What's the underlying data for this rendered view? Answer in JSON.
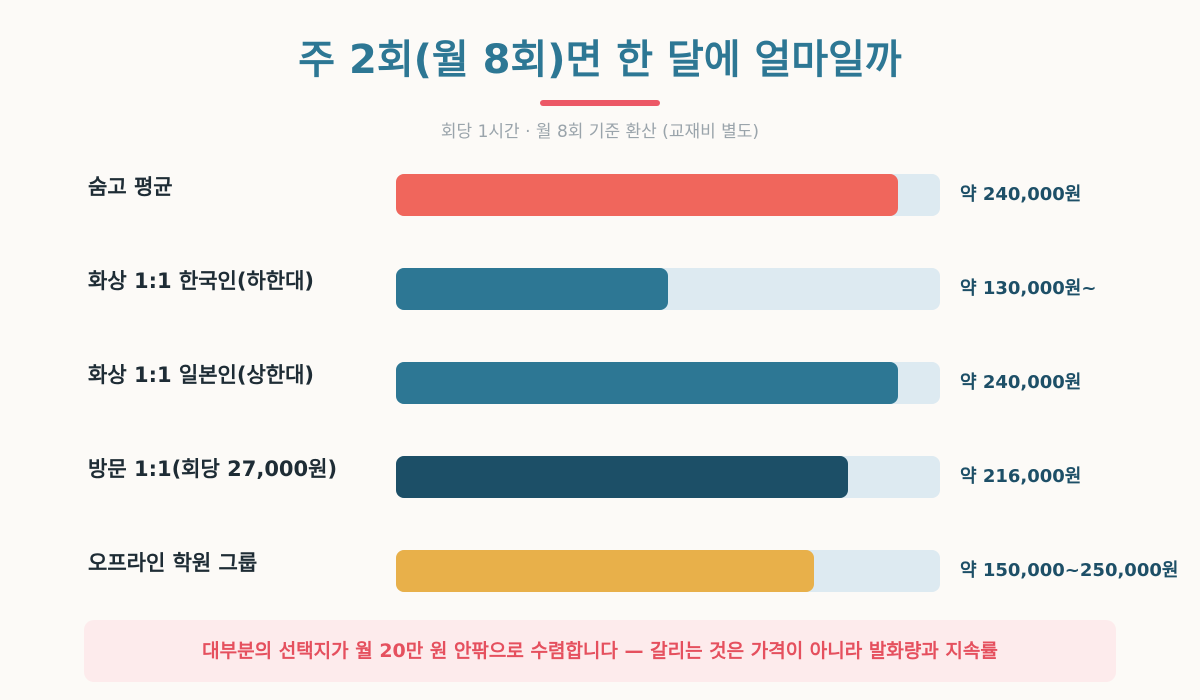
{
  "header": {
    "title": "주 2회(월 8회)면 한 달에 얼마일까",
    "subtitle": "회당 1시간 · 월 8회 기준 환산 (교재비 별도)"
  },
  "colors": {
    "accent": "#ec5866",
    "title": "#2d7794",
    "track": "#ddeaf1"
  },
  "chart_data": {
    "type": "bar",
    "orientation": "horizontal",
    "title": "주 2회(월 8회)면 한 달에 얼마일까",
    "subtitle": "회당 1시간 · 월 8회 기준 환산 (교재비 별도)",
    "xlabel": "",
    "ylabel": "",
    "xlim": [
      0,
      260000
    ],
    "grid": false,
    "categories": [
      "숨고 평균",
      "화상 1:1 한국인(하한대)",
      "화상 1:1 일본인(상한대)",
      "방문 1:1(회당 27,000원)",
      "오프라인 학원 그룹"
    ],
    "values": [
      240000,
      130000,
      240000,
      216000,
      200000
    ],
    "value_labels": [
      "약 240,000원",
      "약 130,000원~",
      "약 240,000원",
      "약 216,000원",
      "약 150,000~250,000원"
    ],
    "bar_colors": [
      "#f0665c",
      "#2d7794",
      "#2d7794",
      "#1c4f67",
      "#e8b04a"
    ]
  },
  "footer": {
    "note": "대부분의 선택지가 월 20만 원 안팎으로 수렴합니다 — 갈리는 것은 가격이 아니라 발화량과 지속률"
  }
}
